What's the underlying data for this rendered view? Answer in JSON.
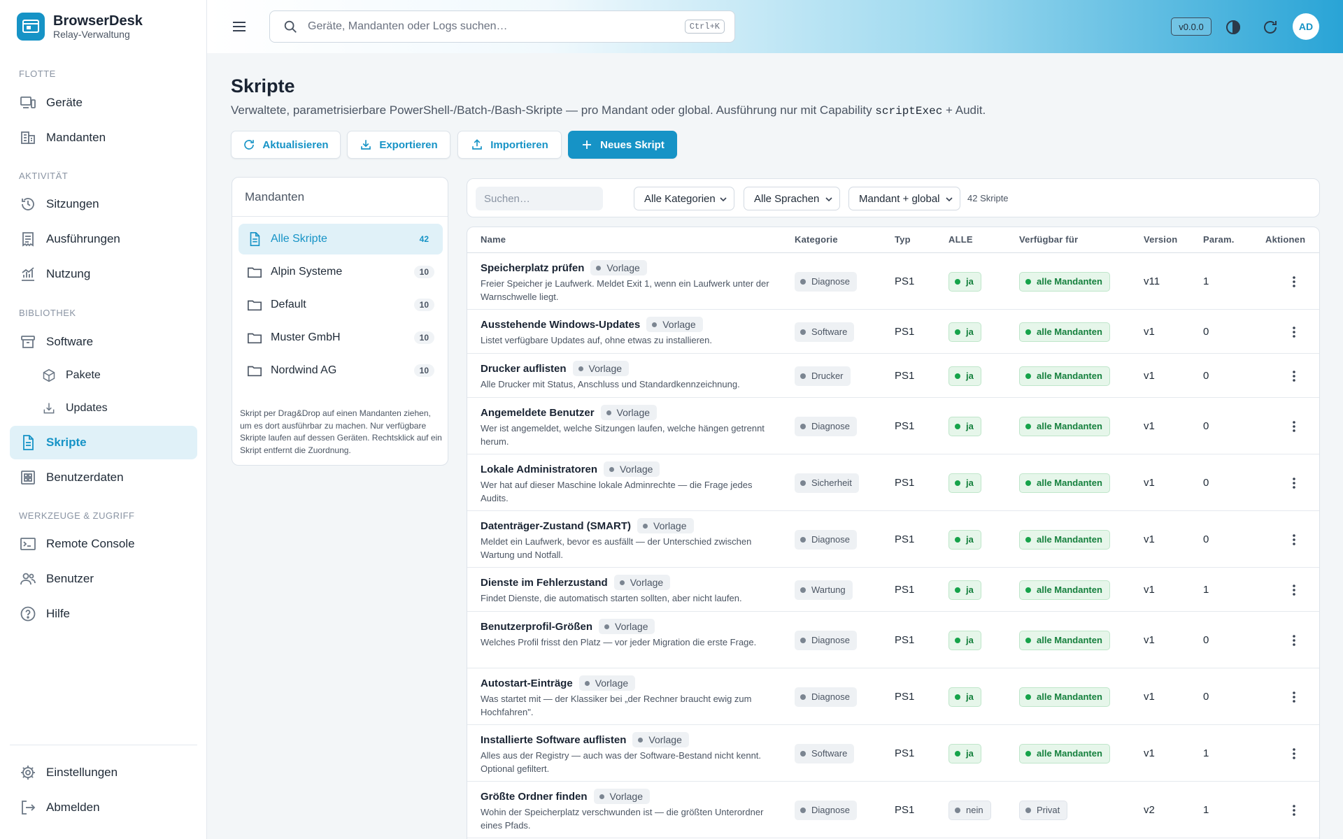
{
  "brand": {
    "name": "BrowserDesk",
    "subtitle": "Relay-Verwaltung"
  },
  "sidebar": {
    "sections": {
      "fleet": "Flotte",
      "activity": "Aktivität",
      "library": "Bibliothek",
      "tools": "Werkzeuge & Zugriff"
    },
    "items": {
      "devices": "Geräte",
      "tenants": "Mandanten",
      "sessions": "Sitzungen",
      "executions": "Ausführungen",
      "usage": "Nutzung",
      "software": "Software",
      "packages": "Pakete",
      "updates": "Updates",
      "scripts": "Skripte",
      "userdata": "Benutzerdaten",
      "console": "Remote Console",
      "users": "Benutzer",
      "help": "Hilfe",
      "settings": "Einstellungen",
      "logout": "Abmelden"
    }
  },
  "topbar": {
    "search_placeholder": "Geräte, Mandanten oder Logs suchen…",
    "shortcut": "Ctrl+K",
    "version": "v0.0.0",
    "avatar": "AD"
  },
  "page": {
    "title": "Skripte",
    "subtitle_pre": "Verwaltete, parametrisierbare PowerShell-/Batch-/Bash-Skripte — pro Mandant oder global. Ausführung nur mit Capability ",
    "subtitle_code": "scriptExec",
    "subtitle_post": " + Audit."
  },
  "actions": {
    "refresh": "Aktualisieren",
    "export": "Exportieren",
    "import": "Importieren",
    "new": "Neues Skript"
  },
  "tenants_panel": {
    "title": "Mandanten",
    "items": [
      {
        "name": "Alle Skripte",
        "count": "42"
      },
      {
        "name": "Alpin Systeme",
        "count": "10"
      },
      {
        "name": "Default",
        "count": "10"
      },
      {
        "name": "Muster GmbH",
        "count": "10"
      },
      {
        "name": "Nordwind AG",
        "count": "10"
      }
    ],
    "hint": "Skript per Drag&Drop auf einen Mandanten ziehen, um es dort ausführbar zu machen. Nur verfügbare Skripte laufen auf dessen Geräten. Rechtsklick auf ein Skript entfernt die Zuordnung."
  },
  "filters": {
    "search_placeholder": "Suchen…",
    "category": "Alle Kategorien",
    "language": "Alle Sprachen",
    "scope": "Mandant + global",
    "count": "42 Skripte"
  },
  "table": {
    "headers": {
      "name": "Name",
      "category": "Kategorie",
      "type": "Typ",
      "all": "ALLE",
      "available": "Verfügbar für",
      "version": "Version",
      "params": "Param.",
      "actions": "Aktionen"
    },
    "template_label": "Vorlage",
    "rows": [
      {
        "name": "Speicherplatz prüfen",
        "desc": "Freier Speicher je Laufwerk. Meldet Exit 1, wenn ein Laufwerk unter der Warnschwelle liegt.",
        "category": "Diagnose",
        "type": "PS1",
        "all": "ja",
        "available": "alle Mandanten",
        "version": "v11",
        "params": "1"
      },
      {
        "name": "Ausstehende Windows-Updates",
        "desc": "Listet verfügbare Updates auf, ohne etwas zu installieren.",
        "category": "Software",
        "type": "PS1",
        "all": "ja",
        "available": "alle Mandanten",
        "version": "v1",
        "params": "0"
      },
      {
        "name": "Drucker auflisten",
        "desc": "Alle Drucker mit Status, Anschluss und Standardkennzeichnung.",
        "category": "Drucker",
        "type": "PS1",
        "all": "ja",
        "available": "alle Mandanten",
        "version": "v1",
        "params": "0"
      },
      {
        "name": "Angemeldete Benutzer",
        "desc": "Wer ist angemeldet, welche Sitzungen laufen, welche hängen getrennt herum.",
        "category": "Diagnose",
        "type": "PS1",
        "all": "ja",
        "available": "alle Mandanten",
        "version": "v1",
        "params": "0"
      },
      {
        "name": "Lokale Administratoren",
        "desc": "Wer hat auf dieser Maschine lokale Adminrechte — die Frage jedes Audits.",
        "category": "Sicherheit",
        "type": "PS1",
        "all": "ja",
        "available": "alle Mandanten",
        "version": "v1",
        "params": "0"
      },
      {
        "name": "Datenträger-Zustand (SMART)",
        "desc": "Meldet ein Laufwerk, bevor es ausfällt — der Unterschied zwischen Wartung und Notfall.",
        "category": "Diagnose",
        "type": "PS1",
        "all": "ja",
        "available": "alle Mandanten",
        "version": "v1",
        "params": "0"
      },
      {
        "name": "Dienste im Fehlerzustand",
        "desc": "Findet Dienste, die automatisch starten sollten, aber nicht laufen.",
        "category": "Wartung",
        "type": "PS1",
        "all": "ja",
        "available": "alle Mandanten",
        "version": "v1",
        "params": "1"
      },
      {
        "name": "Benutzerprofil-Größen",
        "desc": "Welches Profil frisst den Platz — vor jeder Migration die erste Frage.",
        "category": "Diagnose",
        "type": "PS1",
        "all": "ja",
        "available": "alle Mandanten",
        "version": "v1",
        "params": "0"
      },
      {
        "name": "Autostart-Einträge",
        "desc": "Was startet mit — der Klassiker bei „der Rechner braucht ewig zum Hochfahren\".",
        "category": "Diagnose",
        "type": "PS1",
        "all": "ja",
        "available": "alle Mandanten",
        "version": "v1",
        "params": "0"
      },
      {
        "name": "Installierte Software auflisten",
        "desc": "Alles aus der Registry — auch was der Software-Bestand nicht kennt. Optional gefiltert.",
        "category": "Software",
        "type": "PS1",
        "all": "ja",
        "available": "alle Mandanten",
        "version": "v1",
        "params": "1"
      },
      {
        "name": "Größte Ordner finden",
        "desc": "Wohin der Speicherplatz verschwunden ist — die größten Unterordner eines Pfads.",
        "category": "Diagnose",
        "type": "PS1",
        "all": "nein",
        "available": "Privat",
        "version": "v2",
        "params": "1"
      }
    ]
  }
}
